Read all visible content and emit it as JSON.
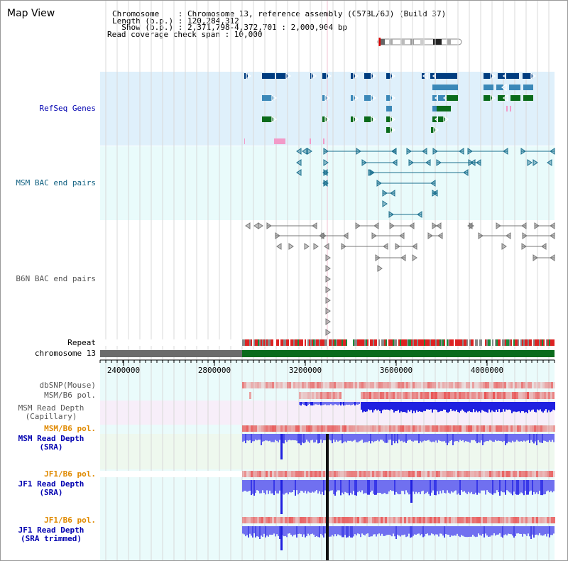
{
  "header": {
    "title": "Map View",
    "info_lines": [
      "Chromosome    : Chromosome 13, reference assembly (C57BL/6J) (Build 37)",
      "Length (b.p.) : 120,284,312",
      "  Show (b.p.) : 2,371,798-4,372,701 : 2,000,904 bp",
      "Read coverage check span : 10,000"
    ]
  },
  "tracks": {
    "refseq": "RefSeq Genes",
    "msm_bac": "MSM BAC end pairs",
    "b6n_bac": "B6N BAC end pairs",
    "repeat": "Repeat",
    "chromosome": "chromosome 13",
    "dbsnp": "dbSNP(Mouse)",
    "msm_b6_pol_1": "MSM/B6 pol.",
    "msm_read_depth_cap": "MSM Read Depth\n(Capillary)",
    "msm_b6_pol_2": "MSM/B6 pol.",
    "msm_read_depth_sra": "MSM Read Depth\n(SRA)",
    "jf1_b6_pol_1": "JF1/B6 pol.",
    "jf1_read_depth_sra": "JF1 Read Depth\n(SRA)",
    "jf1_b6_pol_2": "JF1/B6 pol.",
    "jf1_read_depth_trim": "JF1 Read Depth\n(SRA trimmed)"
  },
  "ruler": {
    "ticks": [
      "2400000",
      "2800000",
      "3200000",
      "3600000",
      "4000000"
    ]
  },
  "colors": {
    "refseq_bg": "#dff0fb",
    "msm_bac_bg": "#e9fbfb",
    "gene_dark": "#003d80",
    "gene_mid": "#3b88b8",
    "gene_green": "#0a6b1b",
    "gene_pink": "#f29ac8",
    "bac_teal": "#1a6f8e",
    "bac_gray": "#777777",
    "chrom_gray": "#6b6b6b",
    "chrom_green": "#0a6b1b",
    "label_blue": "#0000b0",
    "label_orange": "#e08a00",
    "label_teal": "#106080",
    "label_gray": "#555555",
    "depth_blue": "#2020e0",
    "depth_light": "#7070f0",
    "pol_red": "#e84a4a"
  }
}
